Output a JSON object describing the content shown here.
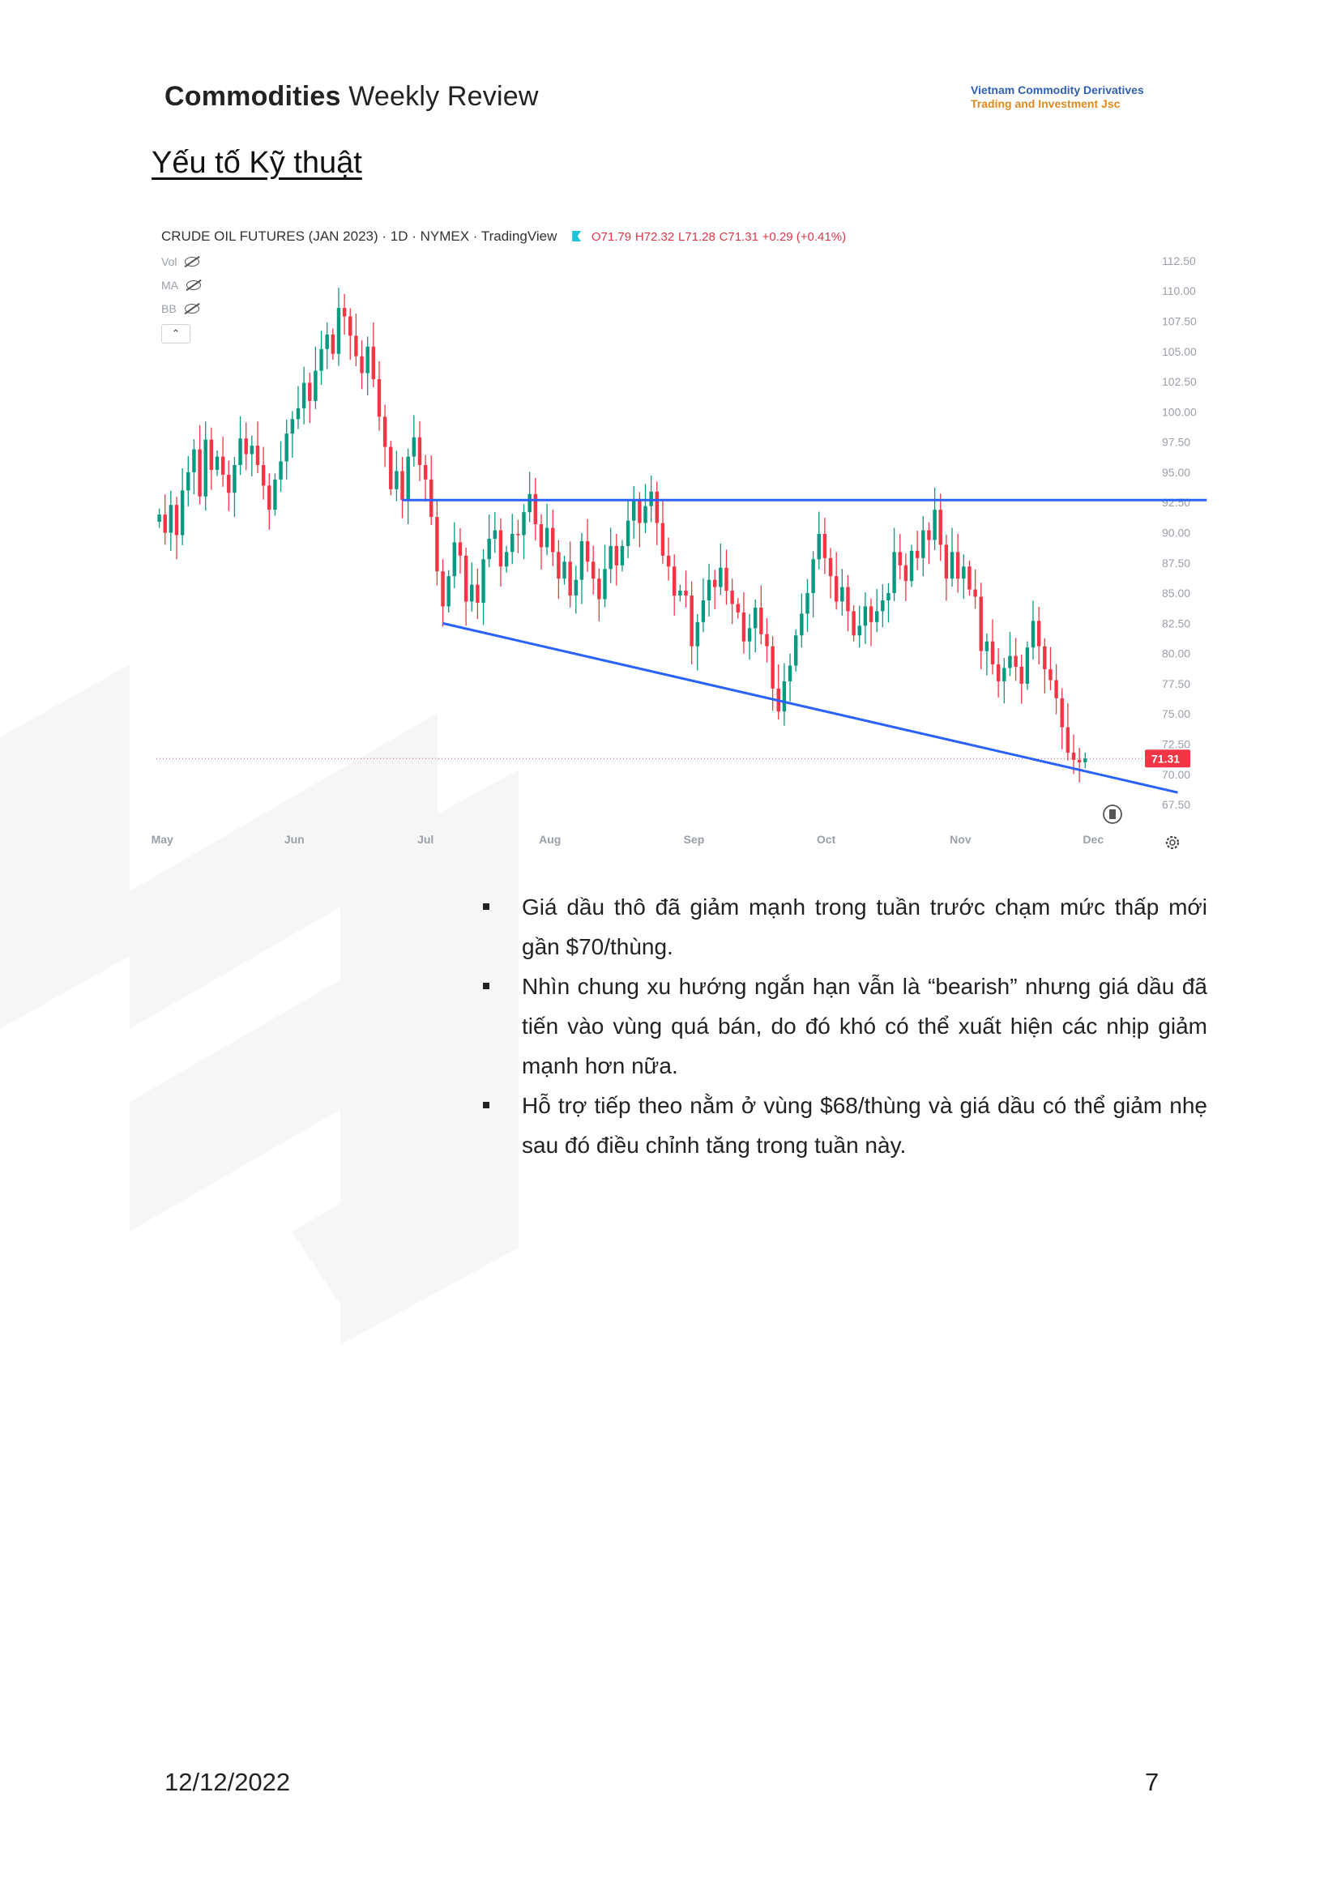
{
  "header": {
    "title_bold": "Commodities",
    "title_rest": "Weekly Review",
    "logo_line1": "Vietnam Commodity Derivatives",
    "logo_line2": "Trading and Investment Jsc"
  },
  "section_title": "Yếu tố Kỹ thuật",
  "chart_data": {
    "type": "candlestick",
    "title": "CRUDE OIL FUTURES (JAN 2023) · 1D · NYMEX · TradingView",
    "ohlc_readout": {
      "o": "O71.79",
      "h": "H72.32",
      "l": "L71.28",
      "c": "C71.31",
      "change": "+0.29 (+0.41%)"
    },
    "indicators": [
      "Vol",
      "MA",
      "BB"
    ],
    "ylim": [
      66.5,
      113.5
    ],
    "y_ticks": [
      "112.50",
      "110.00",
      "107.50",
      "105.00",
      "102.50",
      "100.00",
      "97.50",
      "95.00",
      "92.50",
      "90.00",
      "87.50",
      "85.00",
      "82.50",
      "80.00",
      "77.50",
      "75.00",
      "72.50",
      "70.00",
      "67.50"
    ],
    "x_ticks": [
      {
        "label": "May",
        "day": 0
      },
      {
        "label": "Jun",
        "day": 23
      },
      {
        "label": "Jul",
        "day": 46
      },
      {
        "label": "Aug",
        "day": 67
      },
      {
        "label": "Sep",
        "day": 92
      },
      {
        "label": "Oct",
        "day": 115
      },
      {
        "label": "Nov",
        "day": 138
      },
      {
        "label": "Dec",
        "day": 161
      }
    ],
    "last_price": "71.31",
    "resistance": {
      "from_day": 42,
      "to_day": 181,
      "price": 92.7
    },
    "support_trendline": {
      "from_day": 49,
      "from_price": 82.5,
      "to_day": 176,
      "to_price": 68.5
    },
    "closes": [
      91.5,
      90.0,
      92.3,
      89.8,
      93.5,
      95.0,
      96.9,
      93.0,
      97.7,
      95.2,
      96.3,
      94.8,
      93.3,
      95.6,
      97.8,
      96.5,
      97.2,
      95.6,
      93.9,
      91.9,
      94.4,
      95.9,
      98.2,
      99.4,
      100.3,
      102.4,
      100.9,
      103.4,
      105.2,
      106.4,
      104.8,
      108.6,
      107.9,
      106.3,
      104.6,
      103.2,
      105.4,
      102.7,
      99.6,
      97.1,
      93.6,
      95.1,
      92.7,
      96.3,
      97.9,
      95.6,
      94.4,
      91.3,
      86.8,
      83.9,
      86.4,
      89.2,
      88.1,
      84.3,
      85.7,
      84.2,
      87.8,
      89.5,
      90.2,
      87.2,
      88.4,
      89.9,
      89.8,
      91.7,
      93.2,
      90.7,
      88.8,
      90.4,
      88.4,
      86.2,
      87.6,
      84.8,
      86.1,
      89.3,
      87.6,
      86.2,
      84.5,
      87.0,
      88.9,
      87.3,
      88.9,
      91.0,
      92.7,
      90.8,
      92.2,
      93.4,
      90.8,
      88.1,
      87.2,
      84.8,
      85.2,
      84.8,
      80.6,
      82.6,
      84.4,
      86.1,
      85.5,
      87.1,
      85.2,
      84.1,
      83.4,
      81.0,
      82.1,
      83.8,
      81.6,
      80.6,
      77.1,
      75.2,
      77.7,
      79.0,
      81.5,
      83.3,
      85.0,
      87.8,
      89.9,
      87.9,
      86.4,
      84.3,
      85.5,
      83.5,
      81.5,
      82.3,
      83.9,
      82.6,
      83.5,
      84.4,
      85.0,
      88.4,
      87.3,
      86.0,
      88.5,
      87.9,
      90.2,
      89.4,
      91.9,
      89.0,
      86.2,
      88.4,
      86.2,
      87.2,
      85.3,
      84.7,
      80.2,
      81.0,
      79.1,
      77.7,
      78.8,
      79.8,
      78.9,
      77.5,
      80.5,
      82.7,
      80.6,
      78.7,
      77.8,
      76.3,
      73.9,
      71.8,
      71.2,
      71.0,
      71.31
    ]
  },
  "bullets": [
    "Giá dầu thô đã giảm mạnh trong tuần trước chạm mức thấp mới gần $70/thùng.",
    "Nhìn chung xu hướng ngắn hạn vẫn là “bearish” nhưng giá dầu đã tiến vào vùng quá bán, do đó khó có thể xuất hiện các nhịp giảm mạnh hơn nữa.",
    "Hỗ trợ tiếp theo nằm ở vùng $68/thùng và giá dầu có thể giảm nhẹ sau đó điều chỉnh tăng trong tuần này."
  ],
  "footer": {
    "date": "12/12/2022",
    "page": "7"
  }
}
